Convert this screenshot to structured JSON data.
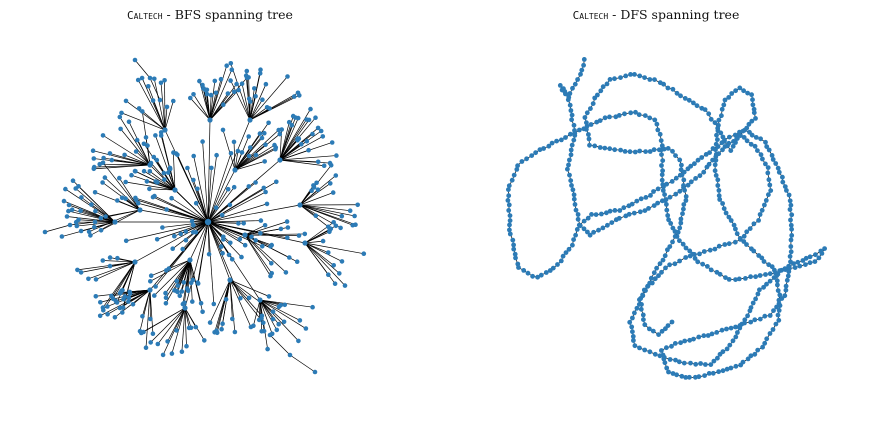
{
  "figure": {
    "left": {
      "dataset": "Caltech",
      "title_rest": " - BFS spanning tree",
      "layout": "star-of-stars"
    },
    "right": {
      "dataset": "Caltech",
      "title_rest": " - DFS spanning tree",
      "layout": "long tangled path"
    }
  },
  "colors": {
    "node": "#2c7bb6",
    "edge": "#000000"
  }
}
